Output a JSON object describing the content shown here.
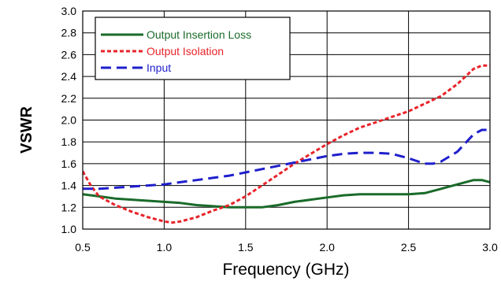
{
  "chart_data": {
    "type": "line",
    "title": "",
    "xlabel": "Frequency (GHz)",
    "ylabel": "VSWR",
    "xlim": [
      0.5,
      3.0
    ],
    "ylim": [
      1.0,
      3.0
    ],
    "x_ticks": [
      "0.5",
      "1.0",
      "1.5",
      "2.0",
      "2.5",
      "3.0"
    ],
    "y_ticks": [
      "1.0",
      "1.2",
      "1.4",
      "1.6",
      "1.8",
      "2.0",
      "2.2",
      "2.4",
      "2.6",
      "2.8",
      "3.0"
    ],
    "grid": true,
    "legend_position": "top-left",
    "series": [
      {
        "name": "Output Insertion Loss",
        "color": "#1a6b2a",
        "style": "solid",
        "x": [
          0.5,
          0.6,
          0.7,
          0.8,
          0.9,
          1.0,
          1.1,
          1.2,
          1.3,
          1.4,
          1.5,
          1.6,
          1.7,
          1.8,
          1.9,
          2.0,
          2.1,
          2.2,
          2.3,
          2.4,
          2.5,
          2.6,
          2.7,
          2.8,
          2.9,
          2.95,
          3.0
        ],
        "y": [
          1.32,
          1.3,
          1.28,
          1.27,
          1.26,
          1.25,
          1.24,
          1.22,
          1.21,
          1.2,
          1.2,
          1.2,
          1.22,
          1.25,
          1.27,
          1.29,
          1.31,
          1.32,
          1.32,
          1.32,
          1.32,
          1.33,
          1.37,
          1.41,
          1.45,
          1.45,
          1.43
        ]
      },
      {
        "name": "Output Isolation",
        "color": "#e8242a",
        "style": "dotted",
        "x": [
          0.5,
          0.55,
          0.6,
          0.7,
          0.8,
          0.9,
          1.0,
          1.05,
          1.1,
          1.2,
          1.3,
          1.4,
          1.5,
          1.6,
          1.7,
          1.8,
          1.9,
          2.0,
          2.1,
          2.2,
          2.3,
          2.4,
          2.5,
          2.6,
          2.7,
          2.8,
          2.9,
          2.95,
          3.0
        ],
        "y": [
          1.53,
          1.4,
          1.3,
          1.22,
          1.16,
          1.11,
          1.07,
          1.06,
          1.07,
          1.11,
          1.17,
          1.22,
          1.3,
          1.4,
          1.5,
          1.6,
          1.69,
          1.78,
          1.86,
          1.93,
          1.98,
          2.03,
          2.08,
          2.15,
          2.22,
          2.33,
          2.47,
          2.5,
          2.5
        ]
      },
      {
        "name": "Input",
        "color": "#1f1fcc",
        "style": "dashed",
        "x": [
          0.5,
          0.6,
          0.7,
          0.8,
          0.9,
          1.0,
          1.1,
          1.2,
          1.3,
          1.4,
          1.5,
          1.6,
          1.7,
          1.8,
          1.9,
          2.0,
          2.1,
          2.2,
          2.3,
          2.4,
          2.5,
          2.6,
          2.65,
          2.7,
          2.8,
          2.9,
          2.95,
          3.0
        ],
        "y": [
          1.37,
          1.37,
          1.38,
          1.39,
          1.4,
          1.41,
          1.43,
          1.45,
          1.47,
          1.49,
          1.52,
          1.55,
          1.58,
          1.61,
          1.64,
          1.67,
          1.69,
          1.7,
          1.7,
          1.69,
          1.65,
          1.6,
          1.6,
          1.62,
          1.71,
          1.87,
          1.91,
          1.91
        ]
      }
    ]
  }
}
